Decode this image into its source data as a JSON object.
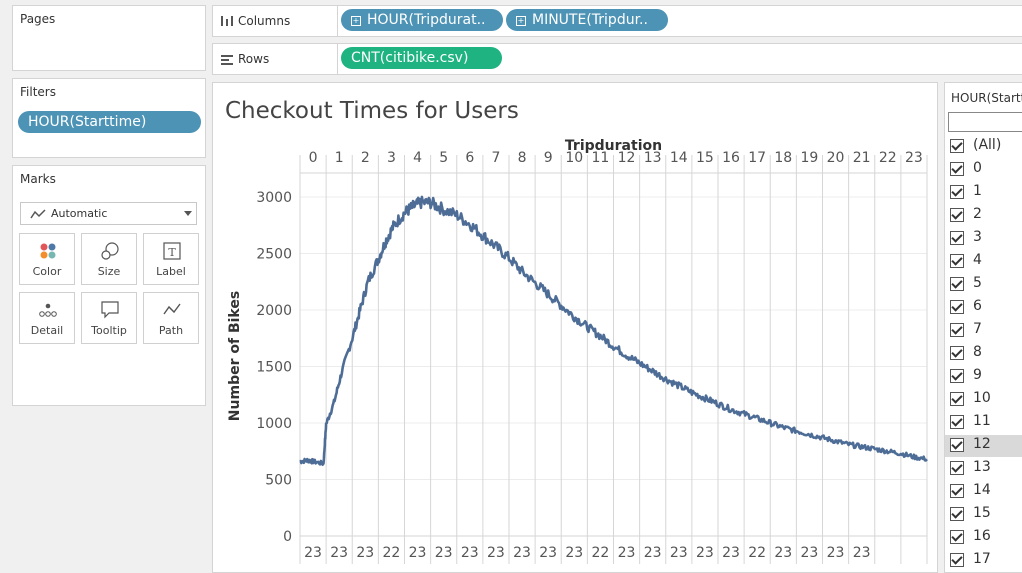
{
  "pages": {
    "title": "Pages"
  },
  "filters": {
    "title": "Filters",
    "pill": "HOUR(Starttime)"
  },
  "marks": {
    "title": "Marks",
    "type": "Automatic",
    "cards": {
      "color": "Color",
      "size": "Size",
      "label": "Label",
      "detail": "Detail",
      "tooltip": "Tooltip",
      "path": "Path"
    }
  },
  "columns": {
    "label": "Columns",
    "pills": [
      "HOUR(Tripdurat..",
      "MINUTE(Tripdur.."
    ]
  },
  "rows": {
    "label": "Rows",
    "pills": [
      "CNT(citibike.csv)"
    ]
  },
  "sheet": {
    "title": "Checkout Times for Users"
  },
  "filter_card": {
    "title": "HOUR(Startt",
    "items": [
      "(All)",
      "0",
      "1",
      "2",
      "3",
      "4",
      "5",
      "6",
      "7",
      "8",
      "9",
      "10",
      "11",
      "12",
      "13",
      "14",
      "15",
      "16",
      "17"
    ],
    "highlighted": "12"
  },
  "colors": {
    "line": "#4e6d96",
    "pill_blue": "#4c93b5",
    "pill_green": "#1eb380"
  },
  "chart_data": {
    "type": "line",
    "title": "Checkout Times for Users",
    "xlabel": "Tripduration",
    "ylabel": "Number of Bikes",
    "x_header": [
      "0",
      "1",
      "2",
      "3",
      "4",
      "5",
      "6",
      "7",
      "8",
      "9",
      "10",
      "11",
      "12",
      "13",
      "14",
      "15",
      "16",
      "17",
      "18",
      "19",
      "20",
      "21",
      "22",
      "23"
    ],
    "x_footer": [
      "23",
      "23",
      "23",
      "22",
      "23",
      "23",
      "23",
      "23",
      "23",
      "23",
      "23",
      "22",
      "23",
      "23",
      "23",
      "23",
      "23",
      "22",
      "23",
      "23",
      "23",
      "23"
    ],
    "y_ticks": [
      "3000",
      "2500",
      "2000",
      "1500",
      "1000",
      "500",
      "0"
    ],
    "ylim": [
      0,
      3100
    ],
    "grid": true,
    "series": [
      {
        "x": [
          0,
          0.3,
          0.5,
          0.9,
          1.0,
          1.3,
          1.6,
          2.0,
          2.3,
          2.6,
          3.0,
          3.3,
          3.6,
          4.0,
          4.3,
          4.6,
          5.0,
          5.4,
          6.0,
          6.5,
          7.0,
          7.5,
          8.0,
          8.5,
          9.0,
          9.5,
          10.0,
          10.5,
          11.0,
          11.5,
          12.0,
          12.5,
          13.0,
          13.5,
          14.0,
          14.5,
          15.0,
          15.5,
          16.0,
          16.5,
          17.0,
          17.5,
          18.0,
          18.5,
          19.0,
          19.5,
          20.0,
          20.5,
          21.0,
          21.5,
          22.0,
          22.5,
          23.0,
          23.5,
          24.0
        ],
        "y": [
          660,
          670,
          660,
          640,
          990,
          1180,
          1450,
          1750,
          2000,
          2250,
          2450,
          2620,
          2750,
          2860,
          2910,
          2950,
          2950,
          2900,
          2840,
          2760,
          2660,
          2560,
          2460,
          2340,
          2240,
          2140,
          2040,
          1940,
          1850,
          1770,
          1680,
          1600,
          1530,
          1460,
          1390,
          1330,
          1270,
          1220,
          1170,
          1120,
          1080,
          1040,
          1000,
          960,
          930,
          900,
          870,
          840,
          810,
          790,
          770,
          750,
          730,
          700,
          680
        ]
      }
    ]
  }
}
